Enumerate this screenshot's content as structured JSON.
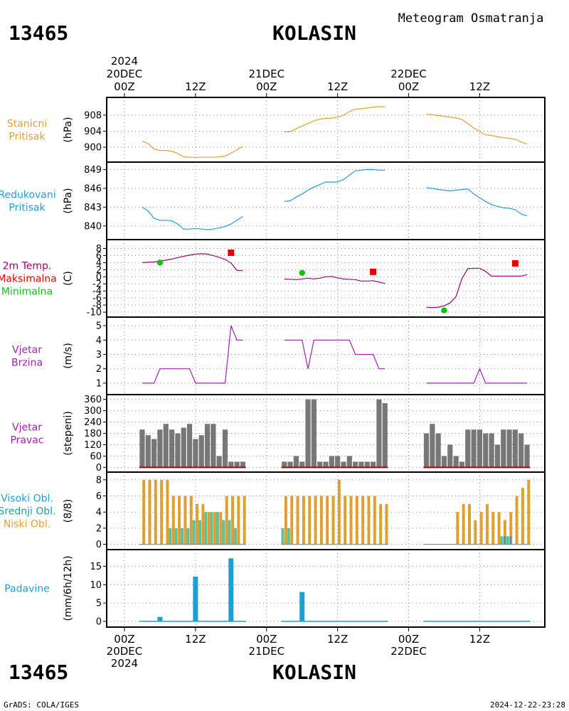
{
  "header": {
    "station_id": "13465",
    "station_name": "KOLASIN",
    "title": "Meteogram Osmatranja"
  },
  "time_axis": {
    "top_labels": [
      {
        "lines": [
          "2024",
          "20DEC",
          "00Z"
        ],
        "hour": 0
      },
      {
        "lines": [
          "12Z"
        ],
        "hour": 12
      },
      {
        "lines": [
          "21DEC",
          "00Z"
        ],
        "hour": 24
      },
      {
        "lines": [
          "12Z"
        ],
        "hour": 36
      },
      {
        "lines": [
          "22DEC",
          "00Z"
        ],
        "hour": 48
      },
      {
        "lines": [
          "12Z"
        ],
        "hour": 60
      }
    ],
    "bottom_labels": [
      {
        "lines": [
          "00Z",
          "20DEC",
          "2024"
        ],
        "hour": 0
      },
      {
        "lines": [
          "12Z"
        ],
        "hour": 12
      },
      {
        "lines": [
          "00Z",
          "21DEC"
        ],
        "hour": 24
      },
      {
        "lines": [
          "12Z"
        ],
        "hour": 36
      },
      {
        "lines": [
          "00Z",
          "22DEC"
        ],
        "hour": 48
      },
      {
        "lines": [
          "12Z"
        ],
        "hour": 60
      }
    ],
    "x_range_hours": [
      -3,
      71
    ]
  },
  "footer": {
    "left": "GrADS: COLA/IGES",
    "right": "2024-12-22-23:28"
  },
  "colors": {
    "pressure": "#e0a030",
    "reduced": "#1aa0d8",
    "temp": "#a0006a",
    "max": "#e80000",
    "min": "#10c010",
    "wind": "#a020b0",
    "dir": "#777777",
    "dir_base": "#b00000",
    "high_cloud": "#1aa0d8",
    "mid_cloud": "#60c0a0",
    "low_cloud": "#e0a030",
    "precip": "#1aa0d8"
  },
  "chart_data": [
    {
      "type": "line",
      "panel": "station_pressure",
      "labels": [
        "Stanicni",
        "Pritisak"
      ],
      "label_color": "#e0a030",
      "unit": "(hPa)",
      "ylim": [
        897,
        911
      ],
      "yticks": [
        900,
        904,
        908
      ],
      "series": [
        {
          "x": [
            3,
            4,
            5,
            6,
            7,
            8,
            9,
            10,
            11,
            12,
            13,
            14,
            15,
            16,
            17,
            18,
            19,
            20
          ],
          "y": [
            901.5,
            900.9,
            899.5,
            899.2,
            899.2,
            899.0,
            898.4,
            897.6,
            897.5,
            897.5,
            897.5,
            897.5,
            897.5,
            897.6,
            897.8,
            898.5,
            899.4,
            900.2
          ]
        },
        {
          "x": [
            27,
            28,
            29,
            30,
            31,
            32,
            33,
            34,
            35,
            36,
            37,
            38,
            39,
            40,
            41,
            42,
            43,
            44
          ],
          "y": [
            903.8,
            903.9,
            904.6,
            905.3,
            905.9,
            906.6,
            907.0,
            907.2,
            907.2,
            907.5,
            908.0,
            908.9,
            909.5,
            909.6,
            909.8,
            910.0,
            910.1,
            910.1
          ]
        },
        {
          "x": [
            51,
            52,
            53,
            54,
            55,
            56,
            57,
            58,
            59,
            60,
            61,
            62,
            63,
            64,
            65,
            66,
            67,
            68
          ],
          "y": [
            908.3,
            908.1,
            907.9,
            907.7,
            907.5,
            907.3,
            906.9,
            905.9,
            904.8,
            903.9,
            903.1,
            902.9,
            902.6,
            902.4,
            902.2,
            902.0,
            901.3,
            900.8
          ]
        }
      ]
    },
    {
      "type": "line",
      "panel": "reduced_pressure",
      "labels": [
        "Redukovani",
        "Pritisak"
      ],
      "label_color": "#1aa0d8",
      "unit": "(hPa)",
      "ylim": [
        838.5,
        849.5
      ],
      "yticks": [
        840,
        843,
        846,
        849
      ],
      "series": [
        {
          "x": [
            3,
            4,
            5,
            6,
            7,
            8,
            9,
            10,
            11,
            12,
            13,
            14,
            15,
            16,
            17,
            18,
            19,
            20
          ],
          "y": [
            843.0,
            842.4,
            841.2,
            840.9,
            840.9,
            840.8,
            840.3,
            839.5,
            839.5,
            839.6,
            839.5,
            839.4,
            839.5,
            839.7,
            839.9,
            840.3,
            840.9,
            841.5
          ]
        },
        {
          "x": [
            27,
            28,
            29,
            30,
            31,
            32,
            33,
            34,
            35,
            36,
            37,
            38,
            39,
            40,
            41,
            42,
            43,
            44
          ],
          "y": [
            843.9,
            844.0,
            844.6,
            845.1,
            845.7,
            846.2,
            846.6,
            847.0,
            847.0,
            847.0,
            847.4,
            848.1,
            848.8,
            848.9,
            849.0,
            849.0,
            848.9,
            848.9
          ]
        },
        {
          "x": [
            51,
            52,
            53,
            54,
            55,
            56,
            57,
            58,
            59,
            60,
            61,
            62,
            63,
            64,
            65,
            66,
            67,
            68
          ],
          "y": [
            846.1,
            846.0,
            845.8,
            845.7,
            845.6,
            845.7,
            845.8,
            845.9,
            845.1,
            844.5,
            843.9,
            843.4,
            843.1,
            842.9,
            842.8,
            842.6,
            841.9,
            841.6
          ]
        }
      ]
    },
    {
      "type": "line",
      "panel": "temperature",
      "labels": [
        "2m Temp.",
        "Maksimalna",
        "Minimalna"
      ],
      "label_colors": [
        "#a0006a",
        "#e80000",
        "#10c010"
      ],
      "unit": "(C)",
      "ylim": [
        -11,
        8.5
      ],
      "yticks": [
        -10,
        -8,
        -6,
        -4,
        -2,
        0,
        2,
        4,
        6,
        8
      ],
      "series": [
        {
          "x": [
            3,
            4,
            5,
            6,
            7,
            8,
            9,
            10,
            11,
            12,
            13,
            14,
            15,
            16,
            17,
            18,
            19,
            20
          ],
          "y": [
            4.0,
            4.1,
            4.2,
            4.4,
            4.7,
            5.0,
            5.4,
            5.8,
            6.1,
            6.4,
            6.5,
            6.4,
            6.0,
            5.5,
            4.9,
            3.9,
            1.8,
            1.7
          ]
        },
        {
          "x": [
            27,
            28,
            29,
            30,
            31,
            32,
            33,
            34,
            35,
            36,
            37,
            38,
            39,
            40,
            41,
            42,
            43,
            44
          ],
          "y": [
            -0.6,
            -0.7,
            -0.8,
            -0.6,
            -0.4,
            -0.6,
            -0.4,
            0.0,
            0.1,
            -0.3,
            -0.6,
            -0.7,
            -0.8,
            -1.2,
            -1.2,
            -1.1,
            -1.5,
            -1.9
          ]
        },
        {
          "x": [
            51,
            52,
            53,
            54,
            55,
            56,
            57,
            58,
            59,
            60,
            61,
            62,
            63,
            64,
            65,
            66,
            67,
            68
          ],
          "y": [
            -8.6,
            -8.7,
            -8.6,
            -8.2,
            -7.4,
            -5.6,
            -0.5,
            2.3,
            2.4,
            2.4,
            1.5,
            0.2,
            0.2,
            0.2,
            0.2,
            0.2,
            0.2,
            0.6
          ]
        }
      ],
      "max_points": {
        "x": [
          18,
          42,
          66
        ],
        "y": [
          6.8,
          1.4,
          3.8
        ]
      },
      "min_points": {
        "x": [
          6,
          30,
          54
        ],
        "y": [
          4.0,
          1.1,
          -9.5
        ]
      }
    },
    {
      "type": "line",
      "panel": "wind_speed",
      "labels": [
        "Vjetar",
        "Brzina"
      ],
      "label_color": "#a020b0",
      "unit": "(m/s)",
      "ylim": [
        0.5,
        5.3
      ],
      "yticks": [
        1,
        2,
        3,
        4,
        5
      ],
      "series": [
        {
          "x": [
            3,
            4,
            5,
            6,
            7,
            8,
            9,
            10,
            11,
            12,
            13,
            14,
            15,
            16,
            17,
            18,
            19,
            20
          ],
          "y": [
            1,
            1,
            1,
            2,
            2,
            2,
            2,
            2,
            2,
            1,
            1,
            1,
            1,
            1,
            1,
            5,
            4,
            4
          ]
        },
        {
          "x": [
            27,
            28,
            29,
            30,
            31,
            32,
            33,
            34,
            35,
            36,
            37,
            38,
            39,
            40,
            41,
            42,
            43,
            44
          ],
          "y": [
            4,
            4,
            4,
            4,
            2,
            4,
            4,
            4,
            4,
            4,
            4,
            4,
            3,
            3,
            3,
            3,
            2,
            2
          ]
        },
        {
          "x": [
            51,
            52,
            53,
            54,
            55,
            56,
            57,
            58,
            59,
            60,
            61,
            62,
            63,
            64,
            65,
            66,
            67,
            68
          ],
          "y": [
            1,
            1,
            1,
            1,
            1,
            1,
            1,
            1,
            1,
            2,
            1,
            1,
            1,
            1,
            1,
            1,
            1,
            1
          ]
        }
      ]
    },
    {
      "type": "bar",
      "panel": "wind_direction",
      "labels": [
        "Vjetar",
        "Pravac"
      ],
      "label_color": "#a020b0",
      "unit": "(stepeni)",
      "ylim": [
        -10,
        370
      ],
      "yticks": [
        0,
        60,
        120,
        180,
        240,
        300,
        360
      ],
      "x": [
        3,
        4,
        5,
        6,
        7,
        8,
        9,
        10,
        11,
        12,
        13,
        14,
        15,
        16,
        17,
        18,
        19,
        20,
        27,
        28,
        29,
        30,
        31,
        32,
        33,
        34,
        35,
        36,
        37,
        38,
        39,
        40,
        41,
        42,
        43,
        44,
        51,
        52,
        53,
        54,
        55,
        56,
        57,
        58,
        59,
        60,
        61,
        62,
        63,
        64,
        65,
        66,
        67,
        68
      ],
      "values": [
        200,
        170,
        150,
        200,
        230,
        200,
        180,
        210,
        230,
        150,
        170,
        230,
        230,
        60,
        200,
        30,
        30,
        30,
        30,
        30,
        60,
        30,
        360,
        360,
        30,
        30,
        60,
        60,
        30,
        60,
        30,
        30,
        30,
        30,
        360,
        340,
        180,
        230,
        180,
        60,
        120,
        60,
        30,
        200,
        200,
        200,
        180,
        180,
        120,
        200,
        200,
        200,
        180,
        120
      ]
    },
    {
      "type": "bar",
      "panel": "clouds",
      "labels": [
        "Visoki Obl.",
        "Srednji Obl.",
        "Niski Obl."
      ],
      "label_colors": [
        "#1aa0d8",
        "#20a0a0",
        "#e0a030"
      ],
      "unit": "(8/8)",
      "ylim": [
        -0.3,
        8.6
      ],
      "yticks": [
        0,
        2,
        4,
        6,
        8
      ],
      "x": [
        3,
        4,
        5,
        6,
        7,
        8,
        9,
        10,
        11,
        12,
        13,
        14,
        15,
        16,
        17,
        18,
        19,
        20,
        27,
        28,
        29,
        30,
        31,
        32,
        33,
        34,
        35,
        36,
        37,
        38,
        39,
        40,
        41,
        42,
        43,
        44,
        51,
        52,
        53,
        54,
        55,
        56,
        57,
        58,
        59,
        60,
        61,
        62,
        63,
        64,
        65,
        66,
        67,
        68
      ],
      "series": [
        {
          "name": "Visoki Obl.",
          "values": [
            0,
            0,
            0,
            0,
            0,
            0,
            0,
            0,
            0,
            0,
            0,
            0,
            0,
            0,
            0,
            0,
            0,
            0,
            0,
            0,
            0,
            0,
            0,
            0,
            0,
            0,
            0,
            0,
            0,
            0,
            0,
            0,
            0,
            0,
            0,
            0,
            0,
            0,
            0,
            0,
            0,
            0,
            0,
            0,
            0,
            0,
            0,
            0,
            0,
            1,
            1,
            0,
            0,
            0
          ]
        },
        {
          "name": "Srednji Obl.",
          "values": [
            0,
            0,
            0,
            0,
            0,
            2,
            2,
            2,
            2,
            3,
            3,
            4,
            4,
            4,
            3,
            3,
            2,
            0,
            2,
            2,
            0,
            0,
            0,
            0,
            0,
            0,
            0,
            0,
            0,
            0,
            0,
            0,
            0,
            0,
            0,
            0,
            0,
            0,
            0,
            0,
            0,
            0,
            0,
            0,
            0,
            0,
            0,
            0,
            0,
            1,
            1,
            0,
            0,
            0
          ]
        },
        {
          "name": "Niski Obl.",
          "values": [
            8,
            8,
            8,
            8,
            8,
            6,
            6,
            6,
            6,
            5,
            5,
            4,
            4,
            4,
            6,
            6,
            6,
            6,
            6,
            6,
            6,
            6,
            6,
            6,
            6,
            6,
            6,
            8,
            6,
            6,
            6,
            6,
            6,
            6,
            5,
            5,
            0,
            0,
            0,
            0,
            0,
            4,
            5,
            5,
            3,
            4,
            5,
            4,
            4,
            3,
            4,
            6,
            7,
            8
          ]
        }
      ]
    },
    {
      "type": "bar",
      "panel": "precipitation",
      "labels": [
        "Padavine"
      ],
      "label_color": "#1aa0d8",
      "unit": "(mm/6h/12h)",
      "ylim": [
        -0.8,
        18.8
      ],
      "yticks": [
        0,
        5,
        10,
        15
      ],
      "x": [
        3,
        4,
        5,
        6,
        7,
        8,
        9,
        10,
        11,
        12,
        13,
        14,
        15,
        16,
        17,
        18,
        19,
        20,
        27,
        28,
        29,
        30,
        31,
        32,
        33,
        34,
        35,
        36,
        37,
        38,
        39,
        40,
        41,
        42,
        43,
        44,
        51,
        52,
        53,
        54,
        55,
        56,
        57,
        58,
        59,
        60,
        61,
        62,
        63,
        64,
        65,
        66,
        67,
        68
      ],
      "values": [
        0,
        0,
        0,
        1.2,
        0,
        0,
        0,
        0,
        0,
        12.2,
        0,
        0,
        0,
        0,
        0,
        17.2,
        0,
        0,
        0,
        0,
        0,
        8.0,
        0,
        0,
        0,
        0,
        0,
        0,
        0,
        0,
        0,
        0,
        0,
        0,
        0,
        0,
        0,
        0,
        0,
        0,
        0,
        0,
        0,
        0,
        0,
        0,
        0,
        0,
        0,
        0,
        0,
        0,
        0,
        0
      ]
    }
  ]
}
